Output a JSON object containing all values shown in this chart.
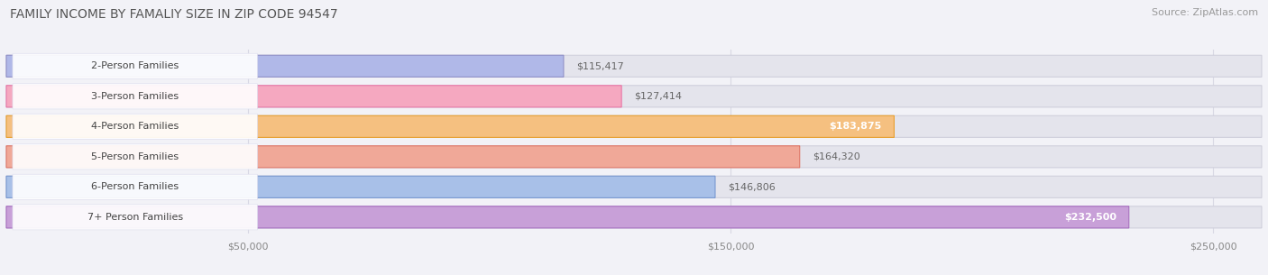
{
  "title": "FAMILY INCOME BY FAMALIY SIZE IN ZIP CODE 94547",
  "source": "Source: ZipAtlas.com",
  "categories": [
    "2-Person Families",
    "3-Person Families",
    "4-Person Families",
    "5-Person Families",
    "6-Person Families",
    "7+ Person Families"
  ],
  "values": [
    115417,
    127414,
    183875,
    164320,
    146806,
    232500
  ],
  "bar_colors": [
    "#b0b8e8",
    "#f5a8c0",
    "#f5c080",
    "#f0a898",
    "#a8c0e8",
    "#c8a0d8"
  ],
  "bar_border_colors": [
    "#9090c8",
    "#e878a8",
    "#e8a030",
    "#e07868",
    "#7898d0",
    "#a870c0"
  ],
  "value_labels": [
    "$115,417",
    "$127,414",
    "$183,875",
    "$164,320",
    "$146,806",
    "$232,500"
  ],
  "label_inside": [
    false,
    false,
    true,
    false,
    false,
    true
  ],
  "xlim_max": 260000,
  "xtick_vals": [
    50000,
    150000,
    250000
  ],
  "xticklabels": [
    "$50,000",
    "$150,000",
    "$250,000"
  ],
  "bg_color": "#f2f2f7",
  "bar_track_color": "#e4e4ec",
  "bar_track_border": "#d0d0dc",
  "label_bg": "#ffffff",
  "title_color": "#555555",
  "source_color": "#999999",
  "tick_color": "#888888",
  "grid_color": "#d8d8e4",
  "value_color_outside": "#666666",
  "value_color_inside": "#ffffff",
  "title_fontsize": 10,
  "source_fontsize": 8,
  "cat_fontsize": 8,
  "value_fontsize": 8
}
